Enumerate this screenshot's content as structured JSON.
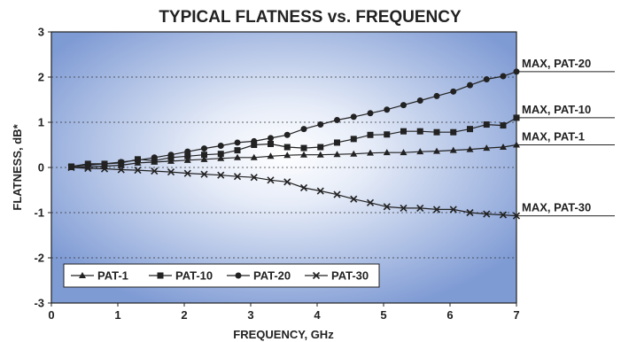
{
  "chart_data": {
    "type": "line",
    "title": "TYPICAL FLATNESS vs. FREQUENCY",
    "xlabel": "FREQUENCY, GHz",
    "ylabel": "FLATNESS, dB*",
    "xlim": [
      0,
      7
    ],
    "ylim": [
      -3,
      3
    ],
    "xticks": [
      "0",
      "1",
      "2",
      "3",
      "4",
      "5",
      "6",
      "7"
    ],
    "yticks": [
      "3",
      "2",
      "1",
      "0",
      "-1",
      "-2",
      "-3"
    ],
    "grid": "horizontal dotted",
    "legend_position": "bottom-left",
    "x": [
      0.3,
      0.55,
      0.8,
      1.05,
      1.3,
      1.55,
      1.8,
      2.05,
      2.3,
      2.55,
      2.8,
      3.05,
      3.3,
      3.55,
      3.8,
      4.05,
      4.3,
      4.55,
      4.8,
      5.05,
      5.3,
      5.55,
      5.8,
      6.05,
      6.3,
      6.55,
      6.8,
      7.0
    ],
    "series": [
      {
        "name": "PAT-1",
        "marker": "triangle",
        "values": [
          0.0,
          0.01,
          0.03,
          0.05,
          0.1,
          0.12,
          0.14,
          0.16,
          0.18,
          0.2,
          0.22,
          0.22,
          0.25,
          0.27,
          0.28,
          0.28,
          0.29,
          0.3,
          0.32,
          0.33,
          0.33,
          0.35,
          0.36,
          0.38,
          0.4,
          0.43,
          0.45,
          0.5
        ]
      },
      {
        "name": "PAT-10",
        "marker": "square",
        "values": [
          0.02,
          0.08,
          0.08,
          0.1,
          0.18,
          0.15,
          0.22,
          0.25,
          0.28,
          0.3,
          0.38,
          0.5,
          0.52,
          0.45,
          0.43,
          0.45,
          0.55,
          0.63,
          0.72,
          0.73,
          0.8,
          0.8,
          0.78,
          0.78,
          0.85,
          0.95,
          0.93,
          1.1
        ]
      },
      {
        "name": "PAT-20",
        "marker": "circle",
        "values": [
          0.02,
          0.05,
          0.08,
          0.12,
          0.16,
          0.22,
          0.28,
          0.35,
          0.42,
          0.48,
          0.55,
          0.58,
          0.65,
          0.72,
          0.85,
          0.95,
          1.05,
          1.12,
          1.2,
          1.28,
          1.38,
          1.48,
          1.58,
          1.68,
          1.82,
          1.95,
          2.02,
          2.12
        ]
      },
      {
        "name": "PAT-30",
        "marker": "x",
        "values": [
          0.0,
          -0.02,
          -0.03,
          -0.05,
          -0.06,
          -0.08,
          -0.1,
          -0.13,
          -0.15,
          -0.17,
          -0.2,
          -0.22,
          -0.28,
          -0.32,
          -0.45,
          -0.52,
          -0.6,
          -0.7,
          -0.78,
          -0.87,
          -0.9,
          -0.9,
          -0.93,
          -0.93,
          -1.0,
          -1.03,
          -1.05,
          -1.07
        ]
      }
    ],
    "annotations": [
      {
        "text": "MAX,  PAT-20",
        "series": "PAT-20"
      },
      {
        "text": "MAX,  PAT-10",
        "series": "PAT-10"
      },
      {
        "text": "MAX,   PAT-1",
        "series": "PAT-1"
      },
      {
        "text": "MAX,  PAT-30",
        "series": "PAT-30"
      }
    ],
    "colors": {
      "plot_center": "#ffffff",
      "plot_edge": "#7f9bd4",
      "line": "#222222",
      "grid": "#333333"
    }
  }
}
